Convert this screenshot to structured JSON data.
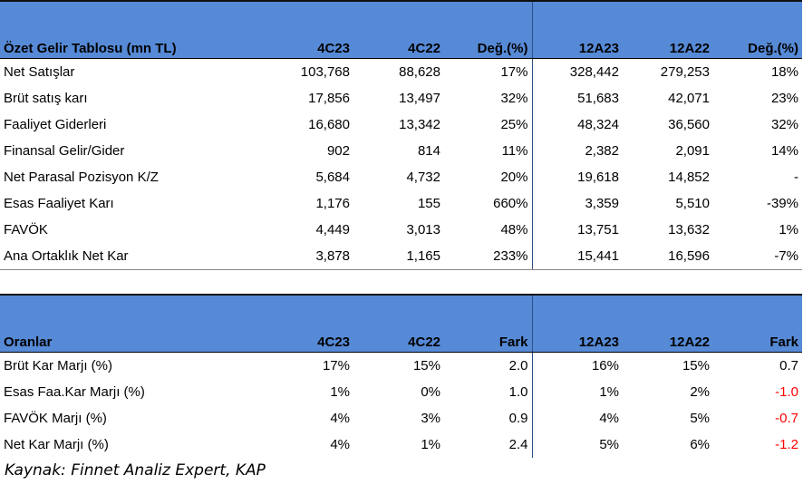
{
  "income": {
    "title": "Özet Gelir Tablosu (mn TL)",
    "headers": [
      "4C23",
      "4C22",
      "Değ.(%)",
      "12A23",
      "12A22",
      "Değ.(%)"
    ],
    "rows": [
      {
        "label": "Net Satışlar",
        "v": [
          "103,768",
          "88,628",
          "17%",
          "328,442",
          "279,253",
          "18%"
        ]
      },
      {
        "label": "Brüt satış karı",
        "v": [
          "17,856",
          "13,497",
          "32%",
          "51,683",
          "42,071",
          "23%"
        ]
      },
      {
        "label": "Faaliyet Giderleri",
        "v": [
          "16,680",
          "13,342",
          "25%",
          "48,324",
          "36,560",
          "32%"
        ]
      },
      {
        "label": "Finansal Gelir/Gider",
        "v": [
          "902",
          "814",
          "11%",
          "2,382",
          "2,091",
          "14%"
        ]
      },
      {
        "label": "Net Parasal Pozisyon K/Z",
        "v": [
          "5,684",
          "4,732",
          "20%",
          "19,618",
          "14,852",
          "-"
        ]
      },
      {
        "label": "Esas Faaliyet Karı",
        "v": [
          "1,176",
          "155",
          "660%",
          "3,359",
          "5,510",
          "-39%"
        ]
      },
      {
        "label": "FAVÖK",
        "v": [
          "4,449",
          "3,013",
          "48%",
          "13,751",
          "13,632",
          "1%"
        ]
      },
      {
        "label": "Ana Ortaklık Net Kar",
        "v": [
          "3,878",
          "1,165",
          "233%",
          "15,441",
          "16,596",
          "-7%"
        ]
      }
    ]
  },
  "ratios": {
    "title": "Oranlar",
    "headers": [
      "4C23",
      "4C22",
      "Fark",
      "12A23",
      "12A22",
      "Fark"
    ],
    "rows": [
      {
        "label": "Brüt Kar Marjı (%)",
        "v": [
          "17%",
          "15%",
          "2.0",
          "16%",
          "15%",
          "0.7"
        ]
      },
      {
        "label": "Esas Faa.Kar Marjı (%)",
        "v": [
          "1%",
          "0%",
          "1.0",
          "1%",
          "2%",
          "-1.0"
        ]
      },
      {
        "label": "FAVÖK Marjı (%)",
        "v": [
          "4%",
          "3%",
          "0.9",
          "4%",
          "5%",
          "-0.7"
        ]
      },
      {
        "label": "Net Kar Marjı (%)",
        "v": [
          "4%",
          "1%",
          "2.4",
          "5%",
          "6%",
          "-1.2"
        ]
      }
    ]
  },
  "colors": {
    "header_bg": "#568ad6",
    "negative": "#ff0000"
  },
  "source": "Kaynak: Finnet Analiz Expert, KAP"
}
